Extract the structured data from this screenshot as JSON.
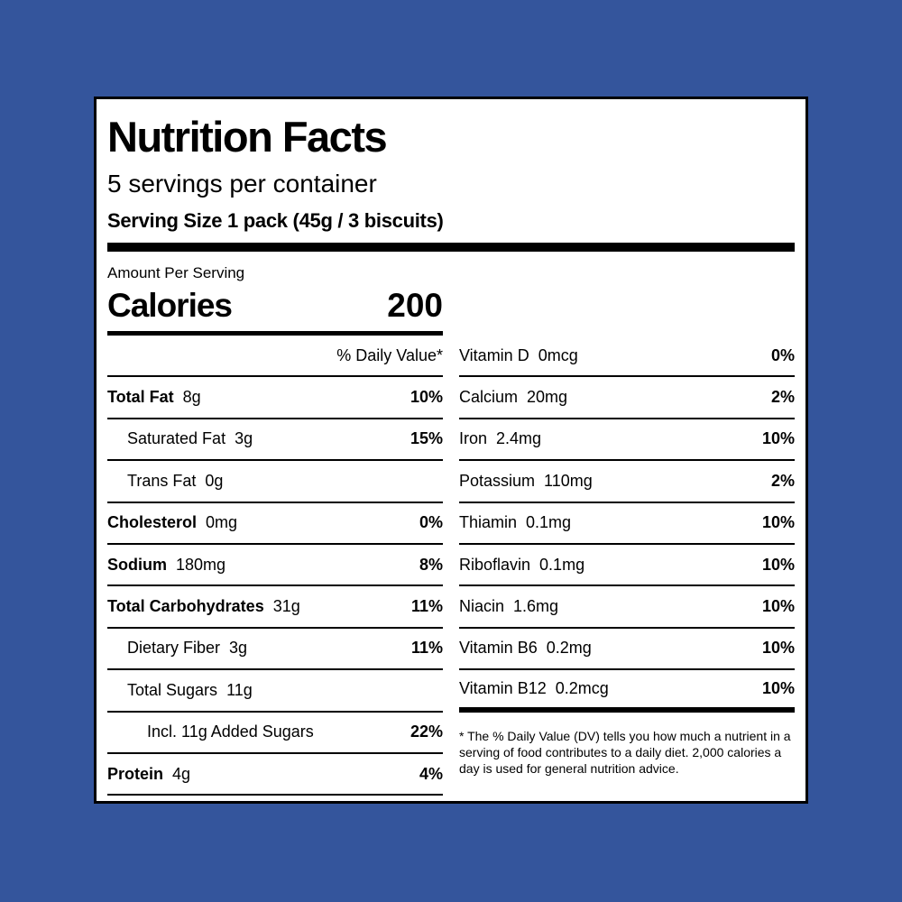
{
  "header": {
    "title": "Nutrition Facts",
    "servings": "5 servings per container",
    "serving_size": "Serving Size 1 pack (45g / 3 biscuits)"
  },
  "calories": {
    "caption": "Amount Per Serving",
    "label": "Calories",
    "value": 200
  },
  "dv_header": "% Daily Value*",
  "nutrients": [
    {
      "name": "Total Fat",
      "amount": "8g",
      "dv": "10%"
    },
    {
      "name": "Saturated Fat",
      "amount": "3g",
      "dv": "15%"
    },
    {
      "name": "Trans Fat",
      "amount": "0g"
    },
    {
      "name": "Cholesterol",
      "amount": "0mg",
      "dv": "0%"
    },
    {
      "name": "Sodium",
      "amount": "180mg",
      "dv": "8%"
    },
    {
      "name": "Total Carbohydrates",
      "amount": "31g",
      "dv": "11%"
    },
    {
      "name": "Dietary Fiber",
      "amount": "3g",
      "dv": "11%"
    },
    {
      "name": "Total Sugars",
      "amount": "11g"
    },
    {
      "name": "Incl. 11g Added Sugars",
      "dv": "22%"
    },
    {
      "name": "Protein",
      "amount": "4g",
      "dv": "4%"
    }
  ],
  "vitamins": [
    {
      "name": "Vitamin D",
      "amount": "0mcg",
      "dv": "0%"
    },
    {
      "name": "Calcium",
      "amount": "20mg",
      "dv": "2%"
    },
    {
      "name": "Iron",
      "amount": "2.4mg",
      "dv": "10%"
    },
    {
      "name": "Potassium",
      "amount": "110mg",
      "dv": "2%"
    },
    {
      "name": "Thiamin",
      "amount": "0.1mg",
      "dv": "10%"
    },
    {
      "name": "Riboflavin",
      "amount": "0.1mg",
      "dv": "10%"
    },
    {
      "name": "Niacin",
      "amount": "1.6mg",
      "dv": "10%"
    },
    {
      "name": "Vitamin B6",
      "amount": "0.2mg",
      "dv": "10%"
    },
    {
      "name": "Vitamin B12",
      "amount": "0.2mcg",
      "dv": "10%"
    }
  ],
  "footnote": "* The % Daily Value (DV) tells you how much a nutrient in a serving of food contributes to a daily diet. 2,000 calories a day is used for general nutrition advice."
}
